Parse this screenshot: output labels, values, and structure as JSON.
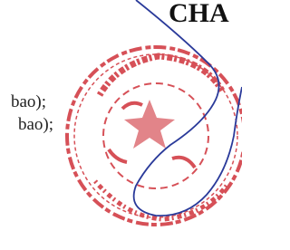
{
  "header": {
    "title": "CHA"
  },
  "body": {
    "lines": [
      "bao);",
      "bao);"
    ]
  }
}
